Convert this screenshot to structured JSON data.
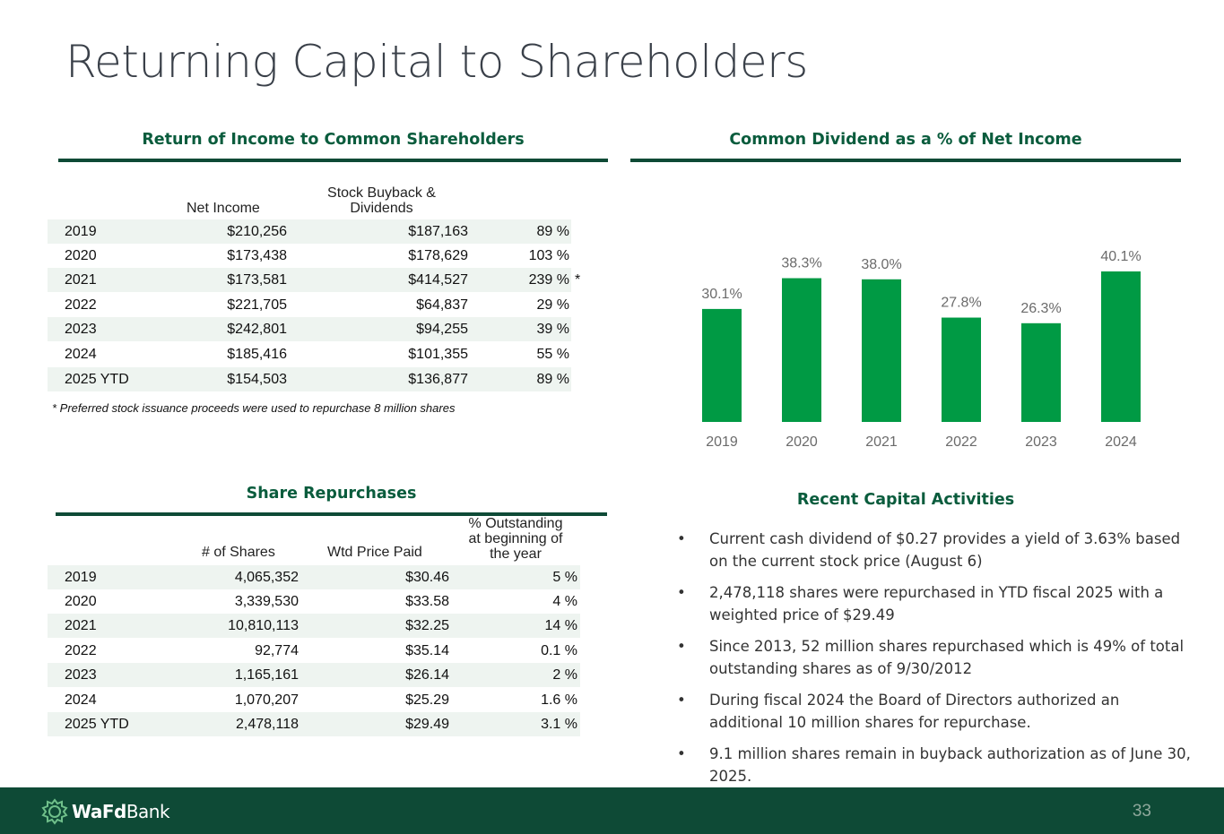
{
  "title": "Returning Capital to Shareholders",
  "income_section": {
    "heading": "Return of Income to Common Shareholders",
    "col_net_income": "Net Income",
    "col_buyback_line1": "Stock Buyback &",
    "col_buyback_line2": "Dividends",
    "rows": [
      {
        "year": "2019",
        "net_income": "$210,256",
        "buyback": "$187,163",
        "pct": "89 %",
        "mark": ""
      },
      {
        "year": "2020",
        "net_income": "$173,438",
        "buyback": "$178,629",
        "pct": "103 %",
        "mark": ""
      },
      {
        "year": "2021",
        "net_income": "$173,581",
        "buyback": "$414,527",
        "pct": "239 %",
        "mark": "*"
      },
      {
        "year": "2022",
        "net_income": "$221,705",
        "buyback": "$64,837",
        "pct": "29 %",
        "mark": ""
      },
      {
        "year": "2023",
        "net_income": "$242,801",
        "buyback": "$94,255",
        "pct": "39 %",
        "mark": ""
      },
      {
        "year": "2024",
        "net_income": "$185,416",
        "buyback": "$101,355",
        "pct": "55 %",
        "mark": ""
      },
      {
        "year": "2025 YTD",
        "net_income": "$154,503",
        "buyback": "$136,877",
        "pct": "89 %",
        "mark": ""
      }
    ],
    "footnote": "* Preferred stock issuance proceeds were used to repurchase 8 million shares"
  },
  "dividend_section": {
    "heading": "Common Dividend as a % of Net Income"
  },
  "chart_data": {
    "type": "bar",
    "categories": [
      "2019",
      "2020",
      "2021",
      "2022",
      "2023",
      "2024"
    ],
    "values": [
      30.1,
      38.3,
      38.0,
      27.8,
      26.3,
      40.1
    ],
    "data_labels": [
      "30.1%",
      "38.3%",
      "38.0%",
      "27.8%",
      "26.3%",
      "40.1%"
    ],
    "title": "",
    "xlabel": "",
    "ylabel": "",
    "ylim": [
      0,
      40.1
    ],
    "grid": false,
    "bar_color": "#009a44"
  },
  "repurchase_section": {
    "heading": "Share Repurchases",
    "col_shares": "# of Shares",
    "col_price": "Wtd Price Paid",
    "col_pct_line1": "% Outstanding",
    "col_pct_line2": "at beginning of",
    "col_pct_line3": "the year",
    "rows": [
      {
        "year": "2019",
        "shares": "4,065,352",
        "price": "$30.46",
        "pct": "5 %"
      },
      {
        "year": "2020",
        "shares": "3,339,530",
        "price": "$33.58",
        "pct": "4 %"
      },
      {
        "year": "2021",
        "shares": "10,810,113",
        "price": "$32.25",
        "pct": "14 %"
      },
      {
        "year": "2022",
        "shares": "92,774",
        "price": "$35.14",
        "pct": "0.1 %"
      },
      {
        "year": "2023",
        "shares": "1,165,161",
        "price": "$26.14",
        "pct": "2 %"
      },
      {
        "year": "2024",
        "shares": "1,070,207",
        "price": "$25.29",
        "pct": "1.6 %"
      },
      {
        "year": "2025 YTD",
        "shares": "2,478,118",
        "price": "$29.49",
        "pct": "3.1 %"
      }
    ]
  },
  "activities_section": {
    "heading": "Recent Capital Activities",
    "bullet_glyph": "•",
    "bullets": [
      "Current cash dividend of $0.27 provides a yield of 3.63% based on the current stock price (August 6)",
      "2,478,118 shares were repurchased in YTD fiscal 2025 with a weighted price of $29.49",
      "Since 2013, 52 million shares repurchased which is 49% of total outstanding shares as of 9/30/2012",
      "During fiscal 2024 the Board of Directors authorized an additional 10 million shares for repurchase.",
      "9.1 million shares remain in buyback authorization as of June 30, 2025."
    ]
  },
  "footer": {
    "logo_bold": "WaFd",
    "logo_regular": "Bank",
    "logo_icon": "wafd-bank-logo-icon",
    "page_number": "33"
  },
  "colors": {
    "dark_green": "#0e4a36",
    "heading_green": "#0a5c3d",
    "bar_green": "#009a44",
    "row_shade": "#eef4f0"
  }
}
